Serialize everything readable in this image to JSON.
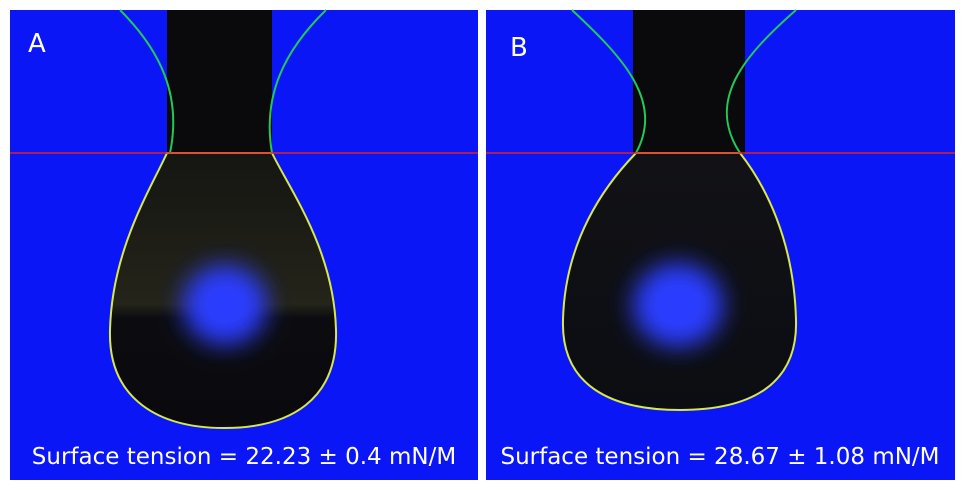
{
  "panels": [
    {
      "label": "A",
      "caption": "Surface tension = 22.23 ± 0.4 mN/M"
    },
    {
      "label": "B",
      "caption": "Surface tension = 28.67 ± 1.08 mN/M"
    }
  ]
}
